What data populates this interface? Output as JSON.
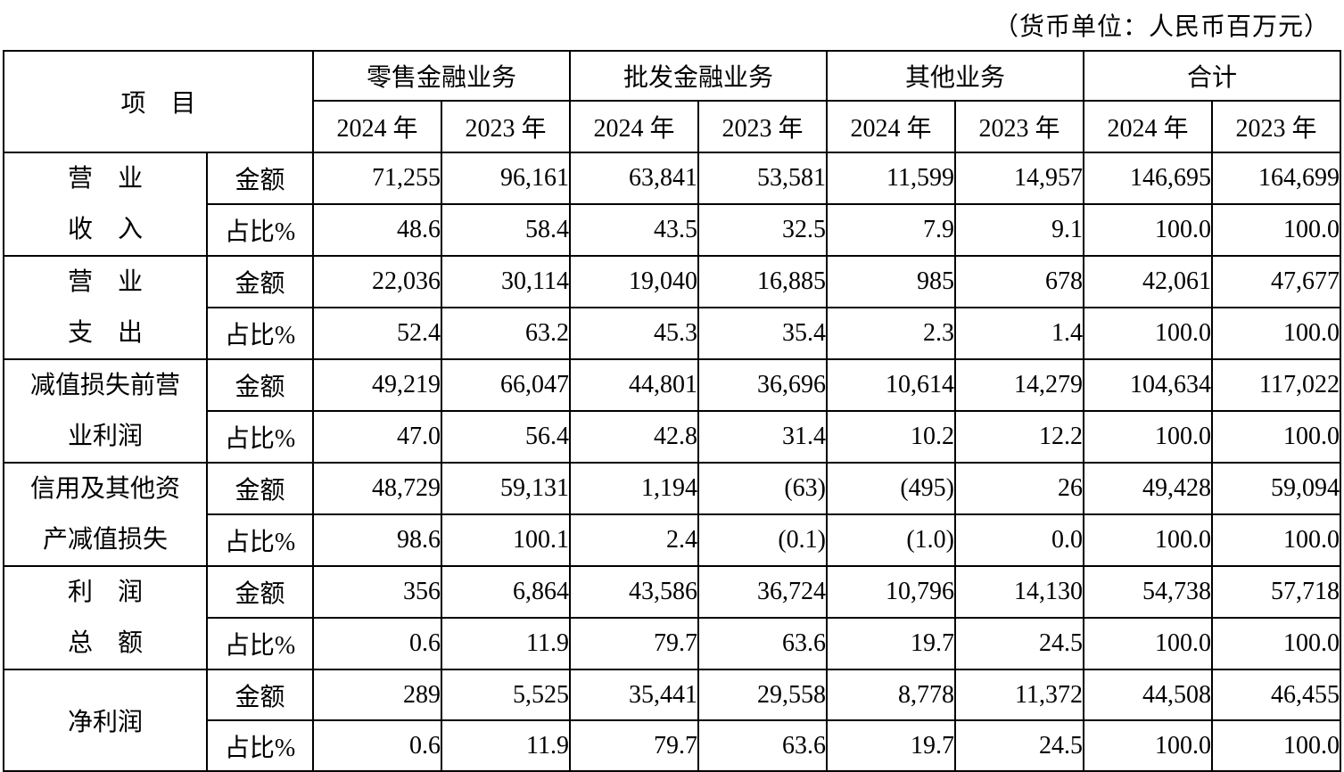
{
  "unit_note": "（货币单位：人民币百万元）",
  "table": {
    "item_header": "项　目",
    "group_headers": [
      "零售金融业务",
      "批发金融业务",
      "其他业务",
      "合计"
    ],
    "year_headers": [
      "2024 年",
      "2023 年"
    ],
    "amount_label": "金额",
    "ratio_label": "占比%",
    "rows": [
      {
        "label_lines": [
          "营　业",
          "收　入"
        ],
        "amount": [
          "71,255",
          "96,161",
          "63,841",
          "53,581",
          "11,599",
          "14,957",
          "146,695",
          "164,699"
        ],
        "ratio": [
          "48.6",
          "58.4",
          "43.5",
          "32.5",
          "7.9",
          "9.1",
          "100.0",
          "100.0"
        ]
      },
      {
        "label_lines": [
          "营　业",
          "支　出"
        ],
        "amount": [
          "22,036",
          "30,114",
          "19,040",
          "16,885",
          "985",
          "678",
          "42,061",
          "47,677"
        ],
        "ratio": [
          "52.4",
          "63.2",
          "45.3",
          "35.4",
          "2.3",
          "1.4",
          "100.0",
          "100.0"
        ]
      },
      {
        "label_lines": [
          "减值损失前营",
          "业利润"
        ],
        "amount": [
          "49,219",
          "66,047",
          "44,801",
          "36,696",
          "10,614",
          "14,279",
          "104,634",
          "117,022"
        ],
        "ratio": [
          "47.0",
          "56.4",
          "42.8",
          "31.4",
          "10.2",
          "12.2",
          "100.0",
          "100.0"
        ]
      },
      {
        "label_lines": [
          "信用及其他资",
          "产减值损失"
        ],
        "amount": [
          "48,729",
          "59,131",
          "1,194",
          "(63)",
          "(495)",
          "26",
          "49,428",
          "59,094"
        ],
        "ratio": [
          "98.6",
          "100.1",
          "2.4",
          "(0.1)",
          "(1.0)",
          "0.0",
          "100.0",
          "100.0"
        ]
      },
      {
        "label_lines": [
          "利　润",
          "总　额"
        ],
        "amount": [
          "356",
          "6,864",
          "43,586",
          "36,724",
          "10,796",
          "14,130",
          "54,738",
          "57,718"
        ],
        "ratio": [
          "0.6",
          "11.9",
          "79.7",
          "63.6",
          "19.7",
          "24.5",
          "100.0",
          "100.0"
        ]
      },
      {
        "label_lines": [
          "净利润"
        ],
        "amount": [
          "289",
          "5,525",
          "35,441",
          "29,558",
          "8,778",
          "11,372",
          "44,508",
          "46,455"
        ],
        "ratio": [
          "0.6",
          "11.9",
          "79.7",
          "63.6",
          "19.7",
          "24.5",
          "100.0",
          "100.0"
        ]
      }
    ]
  }
}
